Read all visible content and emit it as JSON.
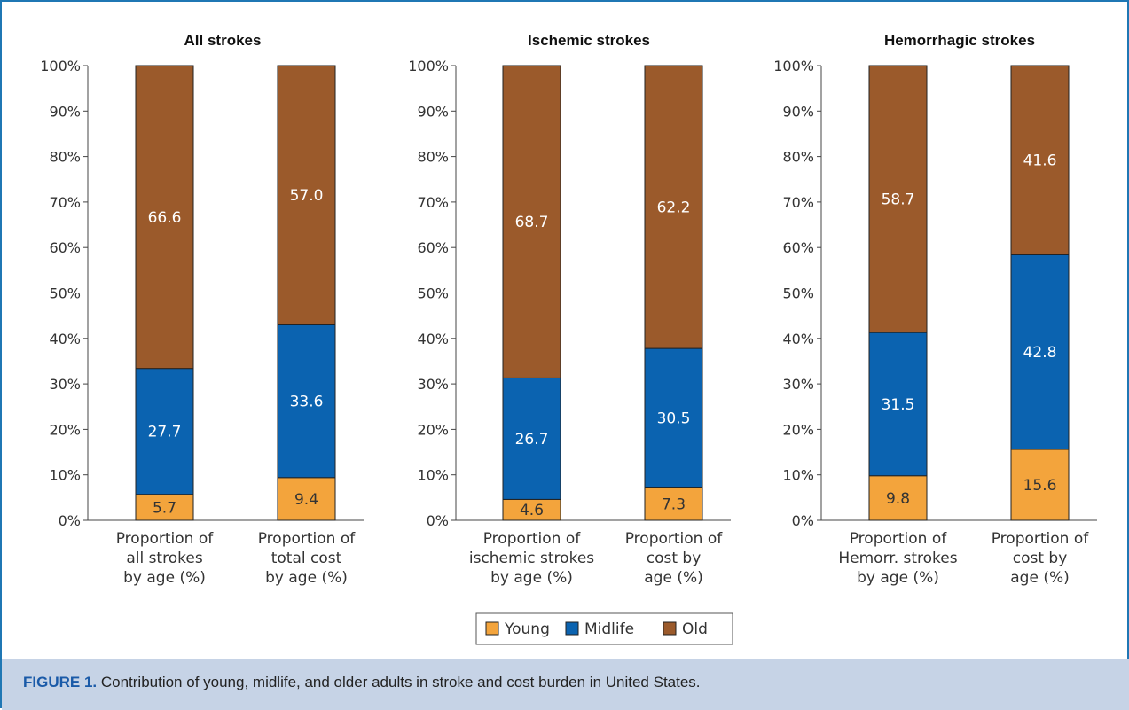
{
  "caption": {
    "label": "FIGURE 1.",
    "text": " Contribution of young, midlife, and older adults in stroke and cost burden in United States."
  },
  "colors": {
    "Young": "#f3a43c",
    "Midlife": "#0b63b0",
    "Old": "#9b5a2b"
  },
  "legend": [
    "Young",
    "Midlife",
    "Old"
  ],
  "chart_data": [
    {
      "type": "bar",
      "stacked": true,
      "title": "All strokes",
      "categories": [
        [
          "Proportion of",
          "all strokes",
          "by age (%)"
        ],
        [
          "Proportion of",
          "total cost",
          "by age (%)"
        ]
      ],
      "series": [
        {
          "name": "Young",
          "values": [
            5.7,
            9.4
          ]
        },
        {
          "name": "Midlife",
          "values": [
            27.7,
            33.6
          ]
        },
        {
          "name": "Old",
          "values": [
            66.6,
            57.0
          ]
        }
      ],
      "ylim": [
        0,
        100
      ],
      "yticks": [
        "0%",
        "10%",
        "20%",
        "30%",
        "40%",
        "50%",
        "60%",
        "70%",
        "80%",
        "90%",
        "100%"
      ]
    },
    {
      "type": "bar",
      "stacked": true,
      "title": "Ischemic strokes",
      "categories": [
        [
          "Proportion of",
          "ischemic strokes",
          "by age (%)"
        ],
        [
          "Proportion of",
          "cost by",
          "age (%)"
        ]
      ],
      "series": [
        {
          "name": "Young",
          "values": [
            4.6,
            7.3
          ]
        },
        {
          "name": "Midlife",
          "values": [
            26.7,
            30.5
          ]
        },
        {
          "name": "Old",
          "values": [
            68.7,
            62.2
          ]
        }
      ],
      "ylim": [
        0,
        100
      ],
      "yticks": [
        "0%",
        "10%",
        "20%",
        "30%",
        "40%",
        "50%",
        "60%",
        "70%",
        "80%",
        "90%",
        "100%"
      ]
    },
    {
      "type": "bar",
      "stacked": true,
      "title": "Hemorrhagic strokes",
      "categories": [
        [
          "Proportion of",
          "Hemorr. strokes",
          "by age (%)"
        ],
        [
          "Proportion of",
          "cost by",
          "age (%)"
        ]
      ],
      "series": [
        {
          "name": "Young",
          "values": [
            9.8,
            15.6
          ]
        },
        {
          "name": "Midlife",
          "values": [
            31.5,
            42.8
          ]
        },
        {
          "name": "Old",
          "values": [
            58.7,
            41.6
          ]
        }
      ],
      "ylim": [
        0,
        100
      ],
      "yticks": [
        "0%",
        "10%",
        "20%",
        "30%",
        "40%",
        "50%",
        "60%",
        "70%",
        "80%",
        "90%",
        "100%"
      ]
    }
  ]
}
